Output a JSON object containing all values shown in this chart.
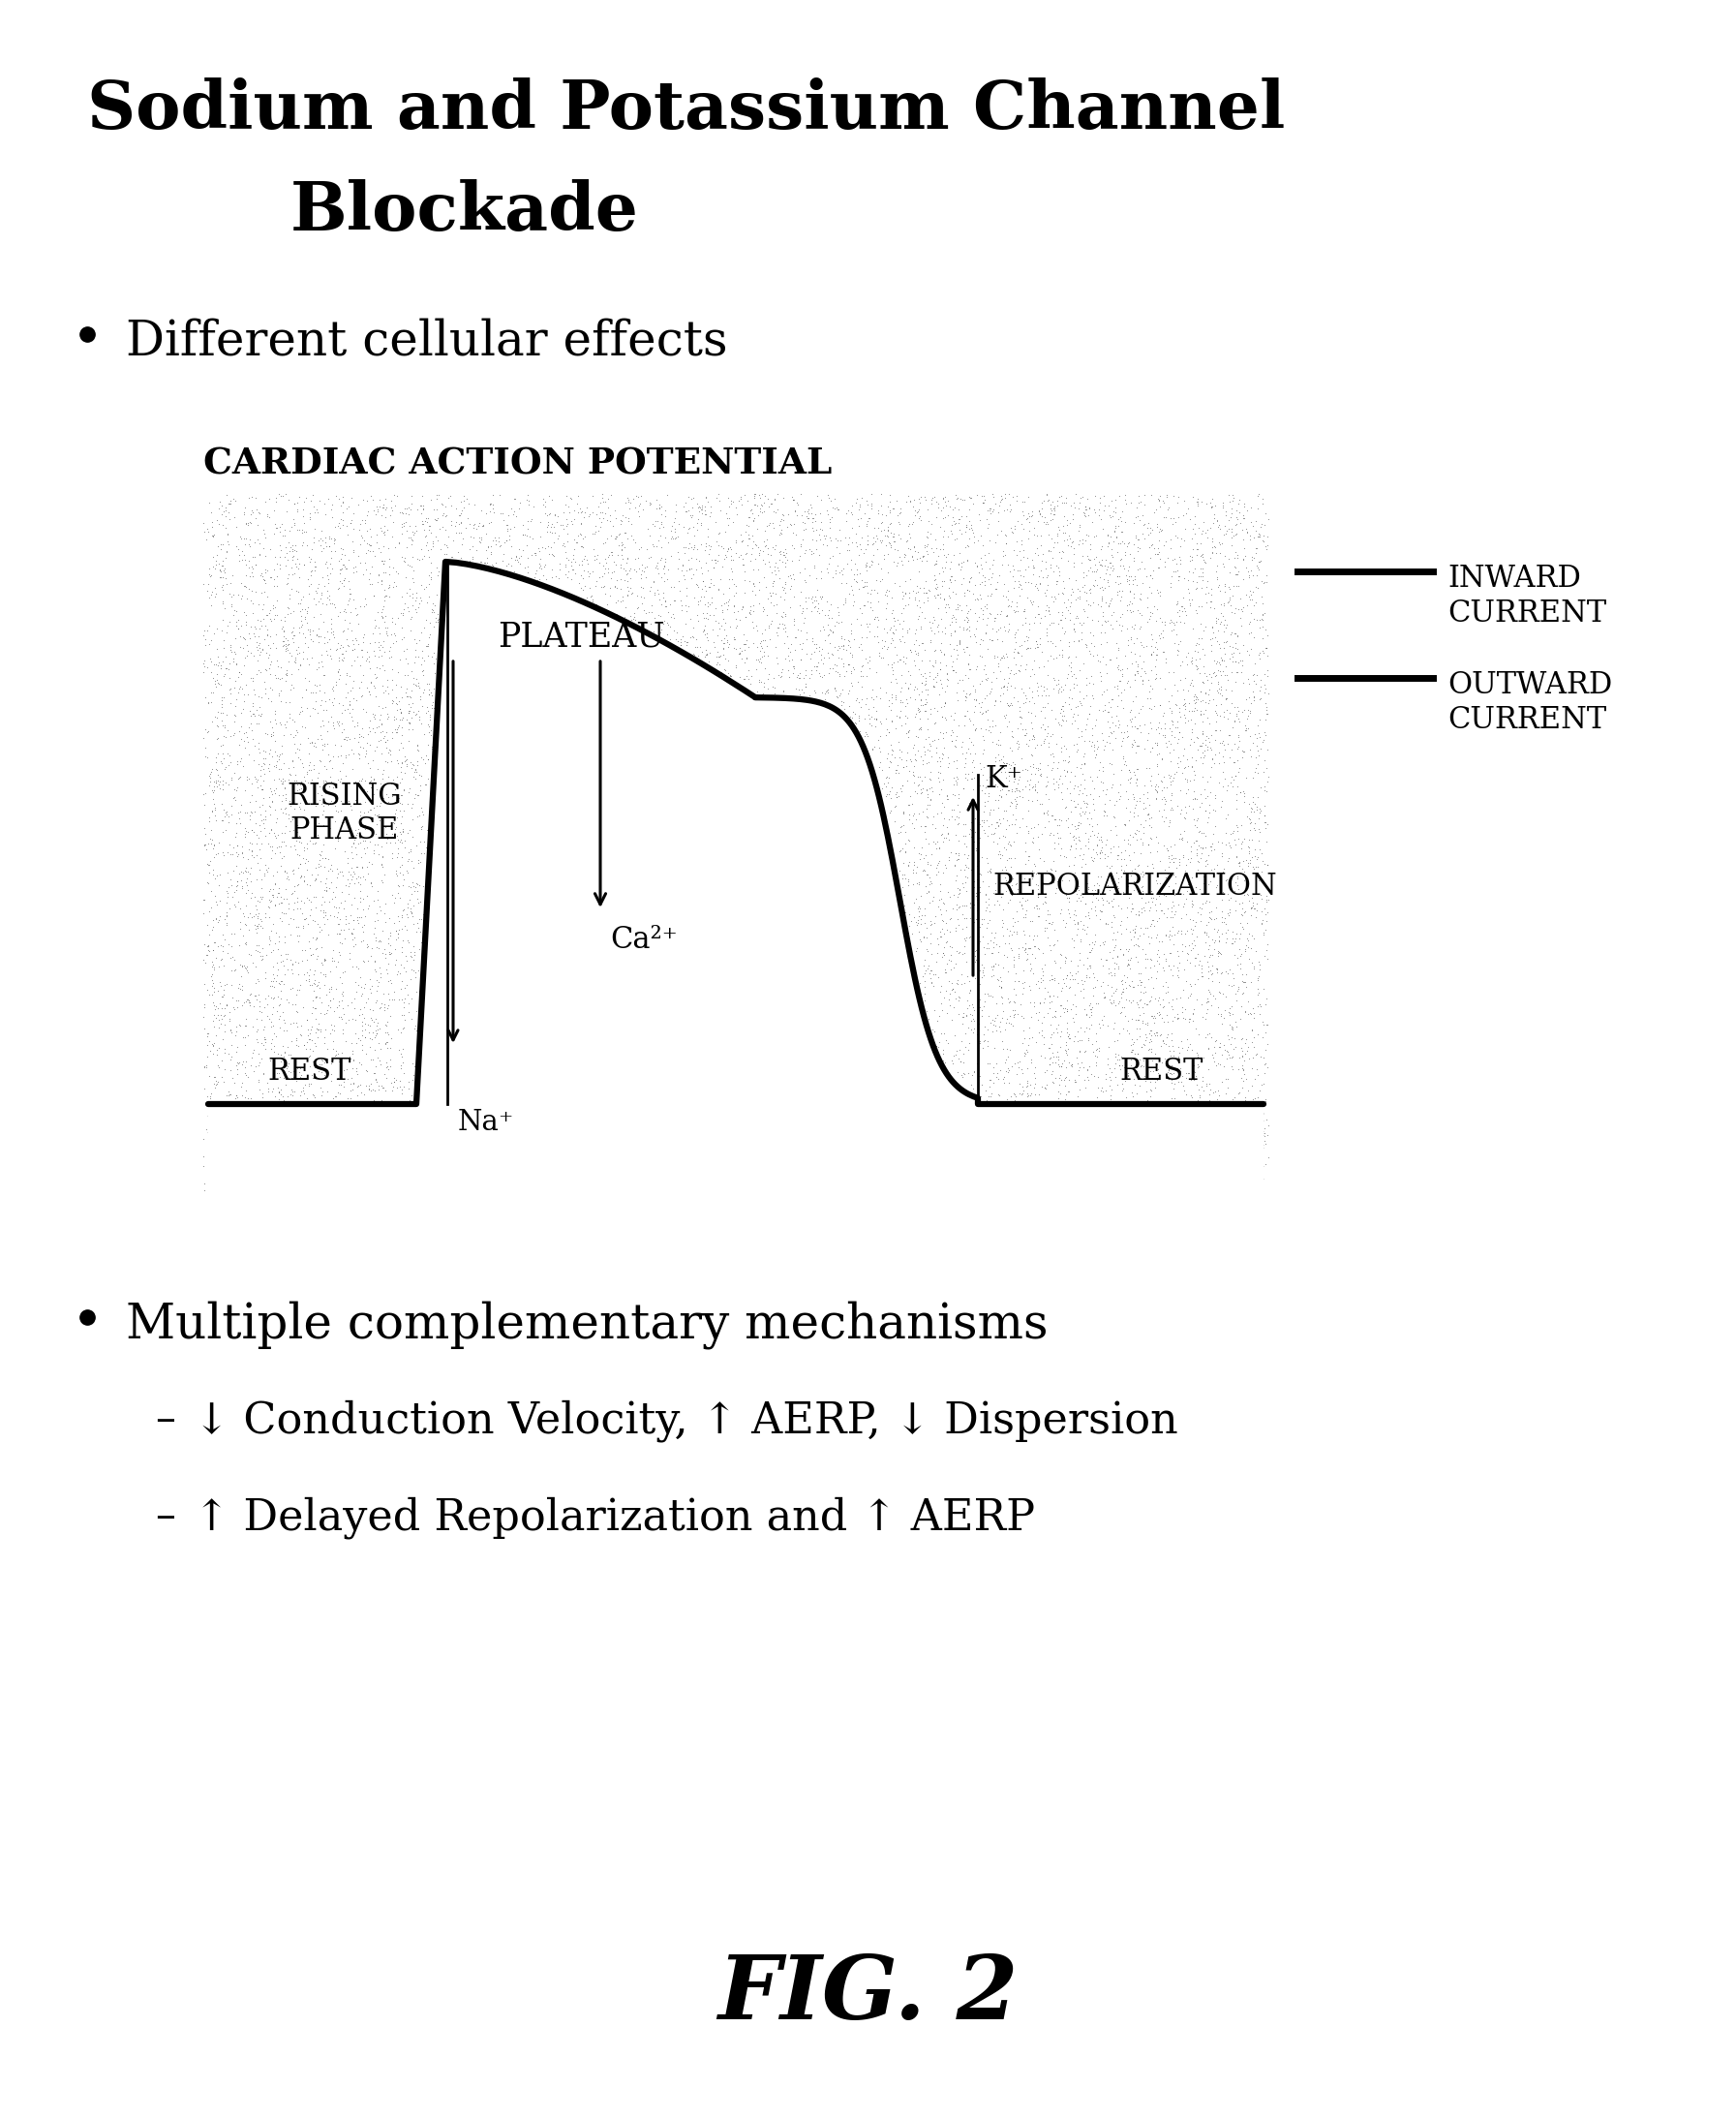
{
  "title_line1": "Sodium and Potassium Channel",
  "title_line2": "Blockade",
  "bullet1": "Different cellular effects",
  "diagram_title": "CARDIAC ACTION POTENTIAL",
  "inward_label": "INWARD\nCURRENT",
  "outward_label": "OUTWARD\nCURRENT",
  "plateau_label": "PLATEAU",
  "rising_label": "RISING\nPHASE",
  "rest_label_left": "REST",
  "rest_label_right": "REST",
  "repol_label": "REPOLARIZATION",
  "na_label": "Na⁺",
  "ca_label": "Ca²⁺",
  "k_label": "K⁺",
  "bullet2": "Multiple complementary mechanisms",
  "sub_bullet1": "↓ Conduction Velocity, ↑ AERP, ↓ Dispersion",
  "sub_bullet2": "↑ Delayed Repolarization and ↑ AERP",
  "fig_label": "FIG. 2",
  "bg_color": "#ffffff"
}
